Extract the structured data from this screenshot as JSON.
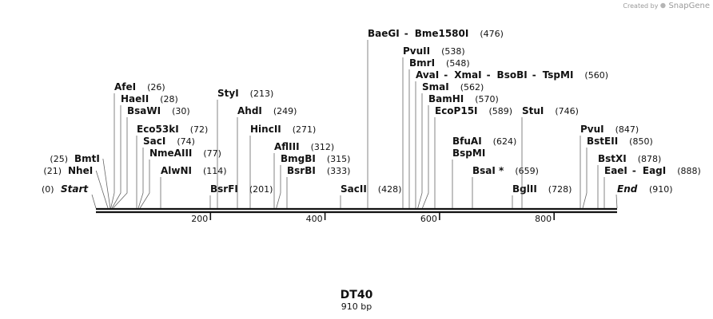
{
  "watermark": {
    "prefix": "Created by",
    "brand": "SnapGene"
  },
  "sequence": {
    "name": "DT40",
    "length_label": "910 bp",
    "length": 910
  },
  "ends": {
    "start_label": "Start",
    "start_pos": "(0)",
    "end_label": "End",
    "end_pos": "(910)"
  },
  "ruler": {
    "ticks": [
      200,
      400,
      600,
      800
    ]
  },
  "sites": [
    {
      "id": "nhei",
      "labels": [
        "NheI"
      ],
      "pos": "(21)",
      "bp": 21
    },
    {
      "id": "bmti",
      "labels": [
        "BmtI"
      ],
      "pos": "(25)",
      "bp": 25
    },
    {
      "id": "afei",
      "labels": [
        "AfeI"
      ],
      "pos": "(26)",
      "bp": 26
    },
    {
      "id": "haeii",
      "labels": [
        "HaeII"
      ],
      "pos": "(28)",
      "bp": 28
    },
    {
      "id": "bsawi",
      "labels": [
        "BsaWI"
      ],
      "pos": "(30)",
      "bp": 30
    },
    {
      "id": "eco53ki",
      "labels": [
        "Eco53kI"
      ],
      "pos": "(72)",
      "bp": 72
    },
    {
      "id": "saci",
      "labels": [
        "SacI"
      ],
      "pos": "(74)",
      "bp": 74
    },
    {
      "id": "nmeaiii",
      "labels": [
        "NmeAIII"
      ],
      "pos": "(77)",
      "bp": 77
    },
    {
      "id": "alwni",
      "labels": [
        "AlwNI"
      ],
      "pos": "(114)",
      "bp": 114
    },
    {
      "id": "bsrfi",
      "labels": [
        "BsrFI"
      ],
      "pos": "(201)",
      "bp": 201
    },
    {
      "id": "styi",
      "labels": [
        "StyI"
      ],
      "pos": "(213)",
      "bp": 213
    },
    {
      "id": "ahdi",
      "labels": [
        "AhdI"
      ],
      "pos": "(249)",
      "bp": 249
    },
    {
      "id": "hincii",
      "labels": [
        "HincII"
      ],
      "pos": "(271)",
      "bp": 271
    },
    {
      "id": "afliii",
      "labels": [
        "AflIII"
      ],
      "pos": "(312)",
      "bp": 312
    },
    {
      "id": "bmgbi",
      "labels": [
        "BmgBI"
      ],
      "pos": "(315)",
      "bp": 315
    },
    {
      "id": "bsrbi",
      "labels": [
        "BsrBI"
      ],
      "pos": "(333)",
      "bp": 333
    },
    {
      "id": "sacii",
      "labels": [
        "SacII"
      ],
      "pos": "(428)",
      "bp": 428
    },
    {
      "id": "baegi",
      "labels": [
        "BaeGI",
        "Bme1580I"
      ],
      "pos": "(476)",
      "bp": 476
    },
    {
      "id": "pvuii",
      "labels": [
        "PvuII"
      ],
      "pos": "(538)",
      "bp": 538
    },
    {
      "id": "bmri",
      "labels": [
        "BmrI"
      ],
      "pos": "(548)",
      "bp": 548
    },
    {
      "id": "avai",
      "labels": [
        "AvaI",
        "XmaI",
        "BsoBI",
        "TspMI"
      ],
      "pos": "(560)",
      "bp": 560
    },
    {
      "id": "smai",
      "labels": [
        "SmaI"
      ],
      "pos": "(562)",
      "bp": 562
    },
    {
      "id": "bamhi",
      "labels": [
        "BamHI"
      ],
      "pos": "(570)",
      "bp": 570
    },
    {
      "id": "ecop15i",
      "labels": [
        "EcoP15I"
      ],
      "pos": "(589)",
      "bp": 589
    },
    {
      "id": "bfuai",
      "labels": [
        "BfuAI",
        "BspMI"
      ],
      "pos": "(624)",
      "bp": 624
    },
    {
      "id": "bsai",
      "labels": [
        "BsaI *"
      ],
      "pos": "(659)",
      "bp": 659
    },
    {
      "id": "bglii",
      "labels": [
        "BglII"
      ],
      "pos": "(728)",
      "bp": 728
    },
    {
      "id": "stui",
      "labels": [
        "StuI"
      ],
      "pos": "(746)",
      "bp": 746
    },
    {
      "id": "pvui",
      "labels": [
        "PvuI"
      ],
      "pos": "(847)",
      "bp": 847
    },
    {
      "id": "bsteii",
      "labels": [
        "BstEII"
      ],
      "pos": "(850)",
      "bp": 850
    },
    {
      "id": "bstxi",
      "labels": [
        "BstXI"
      ],
      "pos": "(878)",
      "bp": 878
    },
    {
      "id": "eaei",
      "labels": [
        "EaeI",
        "EagI"
      ],
      "pos": "(888)",
      "bp": 888
    }
  ]
}
